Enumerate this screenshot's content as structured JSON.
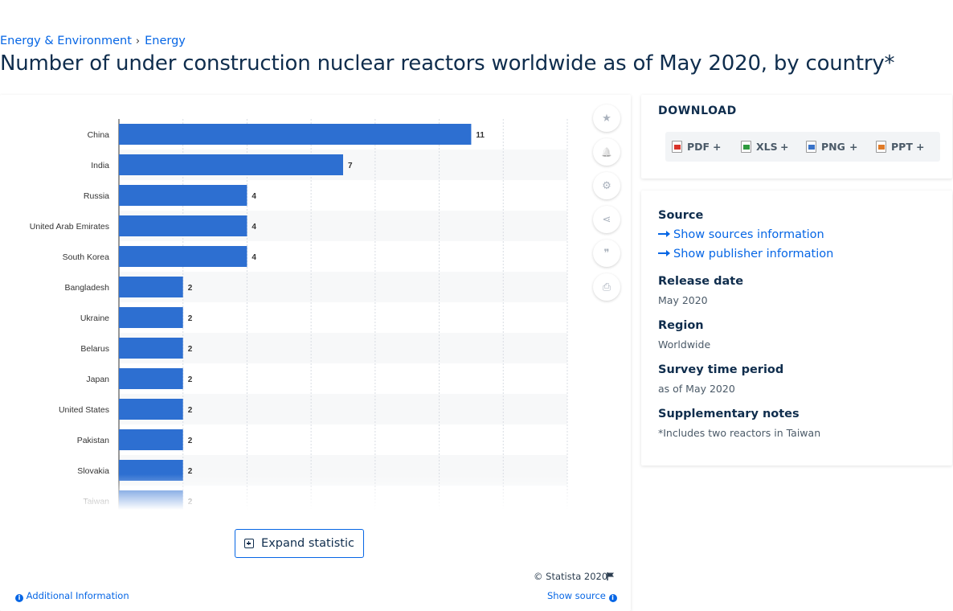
{
  "breadcrumb": {
    "level1": "Energy & Environment",
    "separator": "›",
    "level2": "Energy"
  },
  "page_title": "Number of under construction nuclear reactors worldwide as of May 2020, by country*",
  "chart_data": {
    "type": "bar",
    "orientation": "horizontal",
    "categories": [
      "China",
      "India",
      "Russia",
      "United Arab Emirates",
      "South Korea",
      "Bangladesh",
      "Ukraine",
      "Belarus",
      "Japan",
      "United States",
      "Pakistan",
      "Slovakia",
      "Taiwan"
    ],
    "values": [
      11,
      7,
      4,
      4,
      4,
      2,
      2,
      2,
      2,
      2,
      2,
      2,
      2
    ],
    "xlim": [
      0,
      14
    ],
    "grid": true,
    "bar_color": "#2d6fd1",
    "title": "",
    "xlabel": "",
    "ylabel": ""
  },
  "expand_button": {
    "label": "Expand statistic"
  },
  "footer": {
    "copyright": "© Statista 2020",
    "additional_info": "Additional Information",
    "show_source": "Show source"
  },
  "tools": [
    {
      "icon": "star-icon",
      "glyph": "★"
    },
    {
      "icon": "bell-icon",
      "glyph": "🔔"
    },
    {
      "icon": "gear-icon",
      "glyph": "⚙"
    },
    {
      "icon": "share-icon",
      "glyph": "⋖"
    },
    {
      "icon": "quote-icon",
      "glyph": "❞"
    },
    {
      "icon": "print-icon",
      "glyph": "⎙"
    }
  ],
  "download": {
    "title": "DOWNLOAD",
    "formats": [
      {
        "label": "PDF",
        "color": "#d9342b"
      },
      {
        "label": "XLS",
        "color": "#2e9a3e"
      },
      {
        "label": "PNG",
        "color": "#3a73c8"
      },
      {
        "label": "PPT",
        "color": "#e07b28"
      }
    ],
    "plus": "+"
  },
  "meta": {
    "source_label": "Source",
    "sources_link": "Show sources information",
    "publisher_link": "Show publisher information",
    "release_label": "Release date",
    "release_value": "May 2020",
    "region_label": "Region",
    "region_value": "Worldwide",
    "survey_label": "Survey time period",
    "survey_value": "as of May 2020",
    "notes_label": "Supplementary notes",
    "notes_value": "*Includes two reactors in Taiwan"
  },
  "colors": {
    "accent": "#0666e5",
    "title": "#0f2d4d"
  }
}
